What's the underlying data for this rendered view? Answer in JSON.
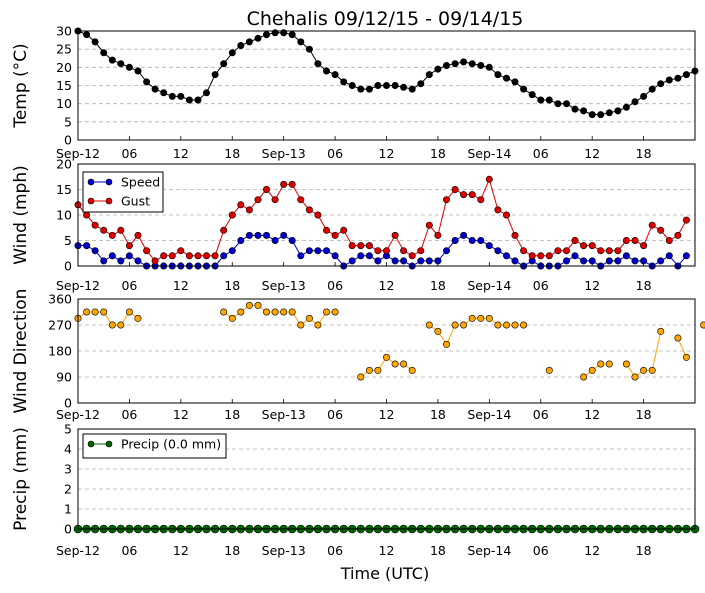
{
  "title": "Chehalis 09/12/15 - 09/14/15",
  "xlabel": "Time (UTC)",
  "xtick_labels": [
    "Sep-12",
    "06",
    "12",
    "18",
    "Sep-13",
    "06",
    "12",
    "18",
    "Sep-14",
    "06",
    "12",
    "18"
  ],
  "colors": {
    "temp": "#000000",
    "speed": "#0000cc",
    "gust": "#dd0000",
    "direction": "#ffa500",
    "precip": "#006400",
    "grid": "#b0b0b0"
  },
  "chart_data": [
    {
      "type": "line",
      "ylabel": "Temp (°C)",
      "ylim": [
        0,
        30
      ],
      "yticks": [
        "0",
        "5",
        "10",
        "15",
        "20",
        "25",
        "30"
      ],
      "xlim_hours": [
        0,
        72
      ],
      "series": [
        {
          "values": [
            30,
            29,
            27,
            24,
            22,
            21,
            20,
            19,
            16,
            14,
            13,
            12,
            12,
            11,
            11,
            13,
            18,
            21,
            24,
            26,
            27,
            28,
            29,
            29.5,
            29.5,
            29,
            27,
            25,
            21,
            19,
            18,
            16,
            15,
            14,
            14,
            15,
            15,
            15,
            14.5,
            14,
            15.5,
            18,
            19.5,
            20.5,
            21,
            21.5,
            21,
            20.5,
            20,
            18,
            17,
            16,
            14,
            12.5,
            11,
            11,
            10,
            10,
            8.5,
            8,
            7,
            7,
            7.5,
            8,
            9,
            10.5,
            12,
            14,
            15.5,
            16.5,
            17,
            18,
            19
          ]
        }
      ]
    },
    {
      "type": "line",
      "ylabel": "Wind (mph)",
      "ylim": [
        0,
        20
      ],
      "yticks": [
        "0",
        "5",
        "10",
        "15",
        "20"
      ],
      "xlim_hours": [
        0,
        72
      ],
      "legend": "top-left",
      "series": [
        {
          "name": "Speed",
          "values": [
            4,
            4,
            3,
            1,
            2,
            1,
            2,
            1,
            0,
            0,
            0,
            0,
            0,
            0,
            0,
            0,
            0,
            2,
            3,
            5,
            6,
            6,
            6,
            5,
            6,
            5,
            2,
            3,
            3,
            3,
            2,
            0,
            1,
            2,
            2,
            1,
            2,
            1,
            1,
            0,
            1,
            1,
            1,
            3,
            5,
            6,
            5,
            5,
            4,
            3,
            2,
            1,
            0,
            1,
            0,
            0,
            0,
            1,
            2,
            1,
            1,
            0,
            1,
            1,
            2,
            1,
            1,
            0,
            1,
            2,
            0,
            2
          ]
        },
        {
          "name": "Gust",
          "values": [
            12,
            10,
            8,
            7,
            6,
            7,
            4,
            6,
            3,
            1,
            2,
            2,
            3,
            2,
            2,
            2,
            2,
            7,
            10,
            12,
            11,
            13,
            15,
            13,
            16,
            16,
            13,
            11,
            10,
            7,
            6,
            7,
            4,
            4,
            4,
            3,
            3,
            6,
            3,
            2,
            3,
            8,
            6,
            13,
            15,
            14,
            14,
            13,
            17,
            11,
            10,
            6,
            3,
            2,
            2,
            2,
            3,
            3,
            5,
            4,
            4,
            3,
            3,
            3,
            5,
            5,
            4,
            8,
            7,
            5,
            6,
            9
          ]
        }
      ]
    },
    {
      "type": "scatter",
      "ylabel": "Wind Direction",
      "ylim": [
        0,
        360
      ],
      "yticks": [
        "0",
        "90",
        "180",
        "270",
        "360"
      ],
      "xlim_hours": [
        0,
        72
      ],
      "series": [
        {
          "values": [
            293,
            315,
            315,
            315,
            270,
            270,
            315,
            293,
            null,
            null,
            null,
            null,
            null,
            null,
            null,
            null,
            null,
            315,
            293,
            315,
            338,
            338,
            315,
            315,
            315,
            315,
            270,
            293,
            270,
            315,
            315,
            null,
            null,
            90,
            113,
            113,
            158,
            135,
            135,
            113,
            null,
            270,
            248,
            203,
            270,
            270,
            293,
            293,
            293,
            270,
            270,
            270,
            270,
            null,
            null,
            113,
            null,
            null,
            null,
            90,
            113,
            135,
            135,
            null,
            135,
            90,
            113,
            113,
            248,
            null,
            225,
            158,
            null,
            270
          ]
        }
      ]
    },
    {
      "type": "line",
      "ylabel": "Precip (mm)",
      "ylim": [
        0,
        5
      ],
      "yticks": [
        "0",
        "1",
        "2",
        "3",
        "4",
        "5"
      ],
      "xlim_hours": [
        0,
        72
      ],
      "legend": "top-left",
      "series": [
        {
          "name": "Precip (0.0 mm)",
          "values": "zeros"
        }
      ]
    }
  ]
}
